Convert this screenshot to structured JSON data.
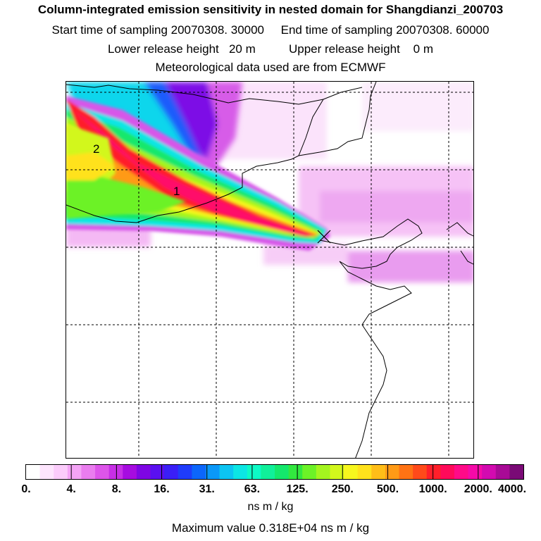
{
  "header": {
    "title": "Column-integrated emission sensitivity in nested domain for Shangdianzi_200703",
    "line1": "Start time of sampling 20070308. 30000     End time of sampling 20070308. 60000",
    "line2": "Lower release height   20 m          Upper release height    0 m",
    "line3": "Meteorological data used are from ECMWF"
  },
  "map": {
    "labels": [
      {
        "id": "cluster-2",
        "text": "2"
      },
      {
        "id": "cluster-1",
        "text": "1"
      }
    ],
    "release_marker": "x-marker-icon"
  },
  "legend": {
    "ticks": [
      "0.",
      "4.",
      "8.",
      "16.",
      "31.",
      "63.",
      "125.",
      "250.",
      "500.",
      "1000.",
      "2000.",
      "4000."
    ],
    "colors": [
      "#ffffff",
      "#fde5fd",
      "#fbccfb",
      "#f4a4f6",
      "#ea7def",
      "#dd55ea",
      "#c72fe6",
      "#a60ce0",
      "#7e06e4",
      "#5a10f0",
      "#3a1ff7",
      "#1f3cfb",
      "#0c66fb",
      "#0a98f8",
      "#0cc4f2",
      "#0ce6e4",
      "#0dfac6",
      "#10f09a",
      "#14e86c",
      "#32e83f",
      "#6cf227",
      "#a4f51f",
      "#d2f71c",
      "#f7f71e",
      "#ffe21c",
      "#ffbe18",
      "#ff9a16",
      "#ff7314",
      "#ff4a1a",
      "#ff1f2a",
      "#ff0a5a",
      "#ff0a88",
      "#f50aa8",
      "#d30ab0",
      "#a80a96",
      "#7a0a76"
    ],
    "unit": "ns m / kg",
    "max_value": "Maximum value  0.318E+04 ns m / kg"
  }
}
